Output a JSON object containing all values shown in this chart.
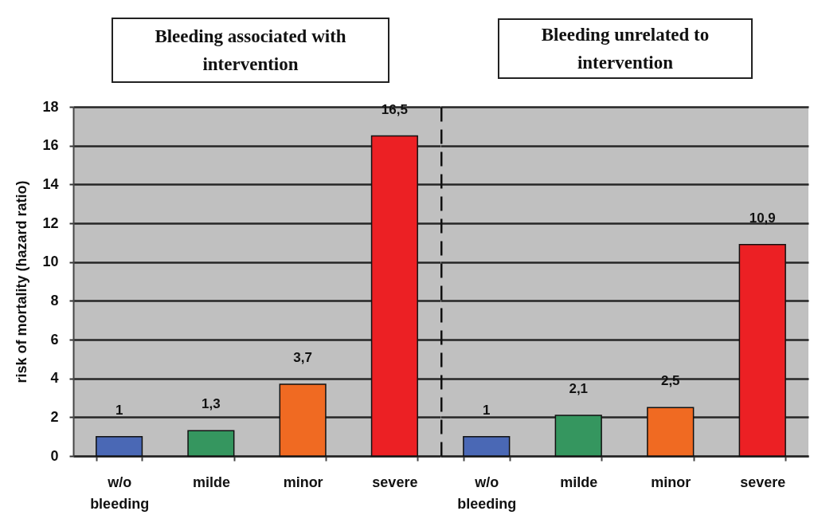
{
  "chart_data": [
    {
      "type": "bar",
      "title": "Bleeding associated with intervention",
      "ylabel": "risk of mortality (hazard ratio)",
      "categories": [
        "w/o bleeding",
        "milde",
        "minor",
        "severe"
      ],
      "values": [
        1,
        1.3,
        3.7,
        16.5
      ],
      "colors": [
        "#4a68b5",
        "#35965f",
        "#f06a22",
        "#ec2024"
      ],
      "value_labels": [
        "1",
        "1,3",
        "3,7",
        "16,5"
      ],
      "ylim": [
        0,
        18
      ],
      "yticks": [
        0,
        2,
        4,
        6,
        8,
        10,
        12,
        14,
        16,
        18
      ],
      "grid": "y"
    },
    {
      "type": "bar",
      "title": "Bleeding unrelated to intervention",
      "categories": [
        "w/o bleeding",
        "milde",
        "minor",
        "severe"
      ],
      "values": [
        1,
        2.1,
        2.5,
        10.9
      ],
      "colors": [
        "#4a68b5",
        "#35965f",
        "#f06a22",
        "#ec2024"
      ],
      "value_labels": [
        "1",
        "2,1",
        "2,5",
        "10,9"
      ],
      "ylim": [
        0,
        18
      ],
      "yticks": [
        0,
        2,
        4,
        6,
        8,
        10,
        12,
        14,
        16,
        18
      ],
      "grid": "y",
      "tick_labels": "x"
    }
  ]
}
